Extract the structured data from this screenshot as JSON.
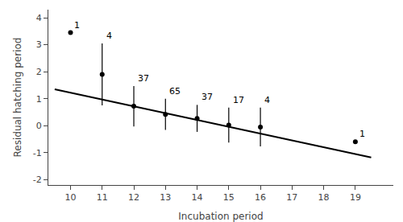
{
  "chart_data": {
    "type": "scatter",
    "xlabel": "Incubation period",
    "ylabel": "Residual hatching period",
    "xlim": [
      9.3,
      20.2
    ],
    "ylim": [
      -2.2,
      4.3
    ],
    "xticks": [
      10,
      11,
      12,
      13,
      14,
      15,
      16,
      17,
      18,
      19
    ],
    "yticks": [
      -2,
      -1,
      0,
      1,
      2,
      3,
      4
    ],
    "grid": false,
    "series": [
      {
        "type": "scatter",
        "marker": "circle",
        "color": "#000000",
        "x": [
          10,
          11,
          12,
          13,
          14,
          15,
          16,
          19
        ],
        "values": [
          3.45,
          1.9,
          0.72,
          0.42,
          0.27,
          0.02,
          -0.05,
          -0.6
        ],
        "errors": [
          0.0,
          1.15,
          0.75,
          0.58,
          0.5,
          0.65,
          0.72,
          0.0
        ],
        "annotations": [
          "1",
          "4",
          "37",
          "65",
          "37",
          "17",
          "4",
          "1"
        ]
      },
      {
        "type": "line",
        "line_style": "solid",
        "color": "#000000",
        "x": [
          9.5,
          19.5
        ],
        "values": [
          1.35,
          -1.18
        ]
      }
    ]
  }
}
